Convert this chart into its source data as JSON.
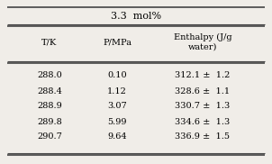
{
  "title": "3.3  mol%",
  "col_headers": [
    "T/K",
    "P/MPa",
    "Enthalpy (J/g\nwater)"
  ],
  "rows": [
    [
      "288.0",
      "0.10",
      "312.1 ±  1.2"
    ],
    [
      "288.4",
      "1.12",
      "328.6 ±  1.1"
    ],
    [
      "288.9",
      "3.07",
      "330.7 ±  1.3"
    ],
    [
      "289.8",
      "5.99",
      "334.6 ±  1.3"
    ],
    [
      "290.7",
      "9.64",
      "336.9 ±  1.5"
    ]
  ],
  "bg_color": "#f0ede8",
  "line_color": "#444444",
  "font_size": 7.0,
  "header_font_size": 7.0,
  "title_font_size": 8.0
}
